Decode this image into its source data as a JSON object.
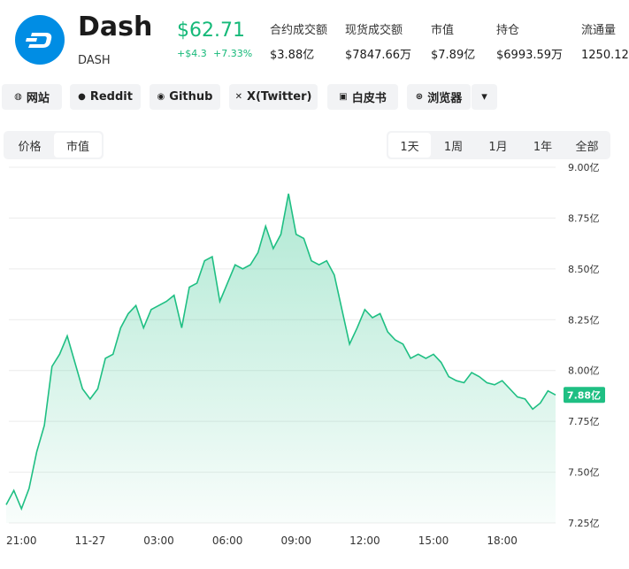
{
  "header": {
    "name": "Dash",
    "symbol": "DASH",
    "price": "$62.71",
    "change": "+$4.3",
    "change_pct": "+7.33%",
    "stats": [
      {
        "label": "合约成交额",
        "value": "$3.88亿"
      },
      {
        "label": "现货成交额",
        "value": "$7847.66万"
      },
      {
        "label": "市值",
        "value": "$7.89亿"
      },
      {
        "label": "持仓",
        "value": "$6993.59万"
      },
      {
        "label": "流通量",
        "value": "1250.12万"
      }
    ]
  },
  "links": [
    "网站",
    "Reddit",
    "Github",
    "X(Twitter)",
    "白皮书",
    "浏览器"
  ],
  "view_tabs": {
    "items": [
      "价格",
      "市值"
    ],
    "selected": 1
  },
  "period_tabs": {
    "items": [
      "1天",
      "1周",
      "1月",
      "1年",
      "全部"
    ],
    "selected": 0
  },
  "chart_data": {
    "type": "area",
    "color": "#1fbf83",
    "categories": [
      null,
      null,
      "21:00",
      null,
      null,
      null,
      null,
      null,
      null,
      null,
      null,
      "11-27",
      null,
      null,
      null,
      null,
      null,
      null,
      null,
      null,
      "03:00",
      null,
      null,
      null,
      null,
      null,
      null,
      null,
      null,
      "06:00",
      null,
      null,
      null,
      null,
      null,
      null,
      null,
      null,
      "09:00",
      null,
      null,
      null,
      null,
      null,
      null,
      null,
      null,
      "12:00",
      null,
      null,
      null,
      null,
      null,
      null,
      null,
      null,
      "15:00",
      null,
      null,
      null,
      null,
      null,
      null,
      null,
      null,
      "18:00",
      null,
      null,
      null,
      null,
      null,
      null,
      null
    ],
    "values": [
      7.34,
      7.41,
      7.32,
      7.42,
      7.6,
      7.73,
      8.02,
      8.08,
      8.17,
      8.04,
      7.91,
      7.86,
      7.91,
      8.06,
      8.08,
      8.21,
      8.28,
      8.32,
      8.21,
      8.3,
      8.32,
      8.34,
      8.37,
      8.21,
      8.41,
      8.43,
      8.54,
      8.56,
      8.34,
      8.43,
      8.52,
      8.5,
      8.52,
      8.58,
      8.71,
      8.6,
      8.67,
      8.87,
      8.67,
      8.65,
      8.54,
      8.52,
      8.54,
      8.47,
      8.3,
      8.13,
      8.21,
      8.3,
      8.26,
      8.28,
      8.19,
      8.15,
      8.13,
      8.06,
      8.08,
      8.06,
      8.08,
      8.04,
      7.97,
      7.95,
      7.94,
      7.99,
      7.97,
      7.94,
      7.93,
      7.95,
      7.91,
      7.87,
      7.86,
      7.81,
      7.84,
      7.9,
      7.88
    ],
    "ylim": [
      7.25,
      9.0
    ],
    "yticks": [
      {
        "value": 7.25,
        "label": "7.25亿"
      },
      {
        "value": 7.5,
        "label": "7.50亿"
      },
      {
        "value": 7.75,
        "label": "7.75亿"
      },
      {
        "value": 8.0,
        "label": "8.00亿"
      },
      {
        "value": 8.25,
        "label": "8.25亿"
      },
      {
        "value": 8.5,
        "label": "8.50亿"
      },
      {
        "value": 8.75,
        "label": "8.75亿"
      },
      {
        "value": 9.0,
        "label": "9.00亿"
      }
    ],
    "grid": true,
    "annotation": {
      "value": 7.88,
      "label": "7.88亿"
    }
  }
}
